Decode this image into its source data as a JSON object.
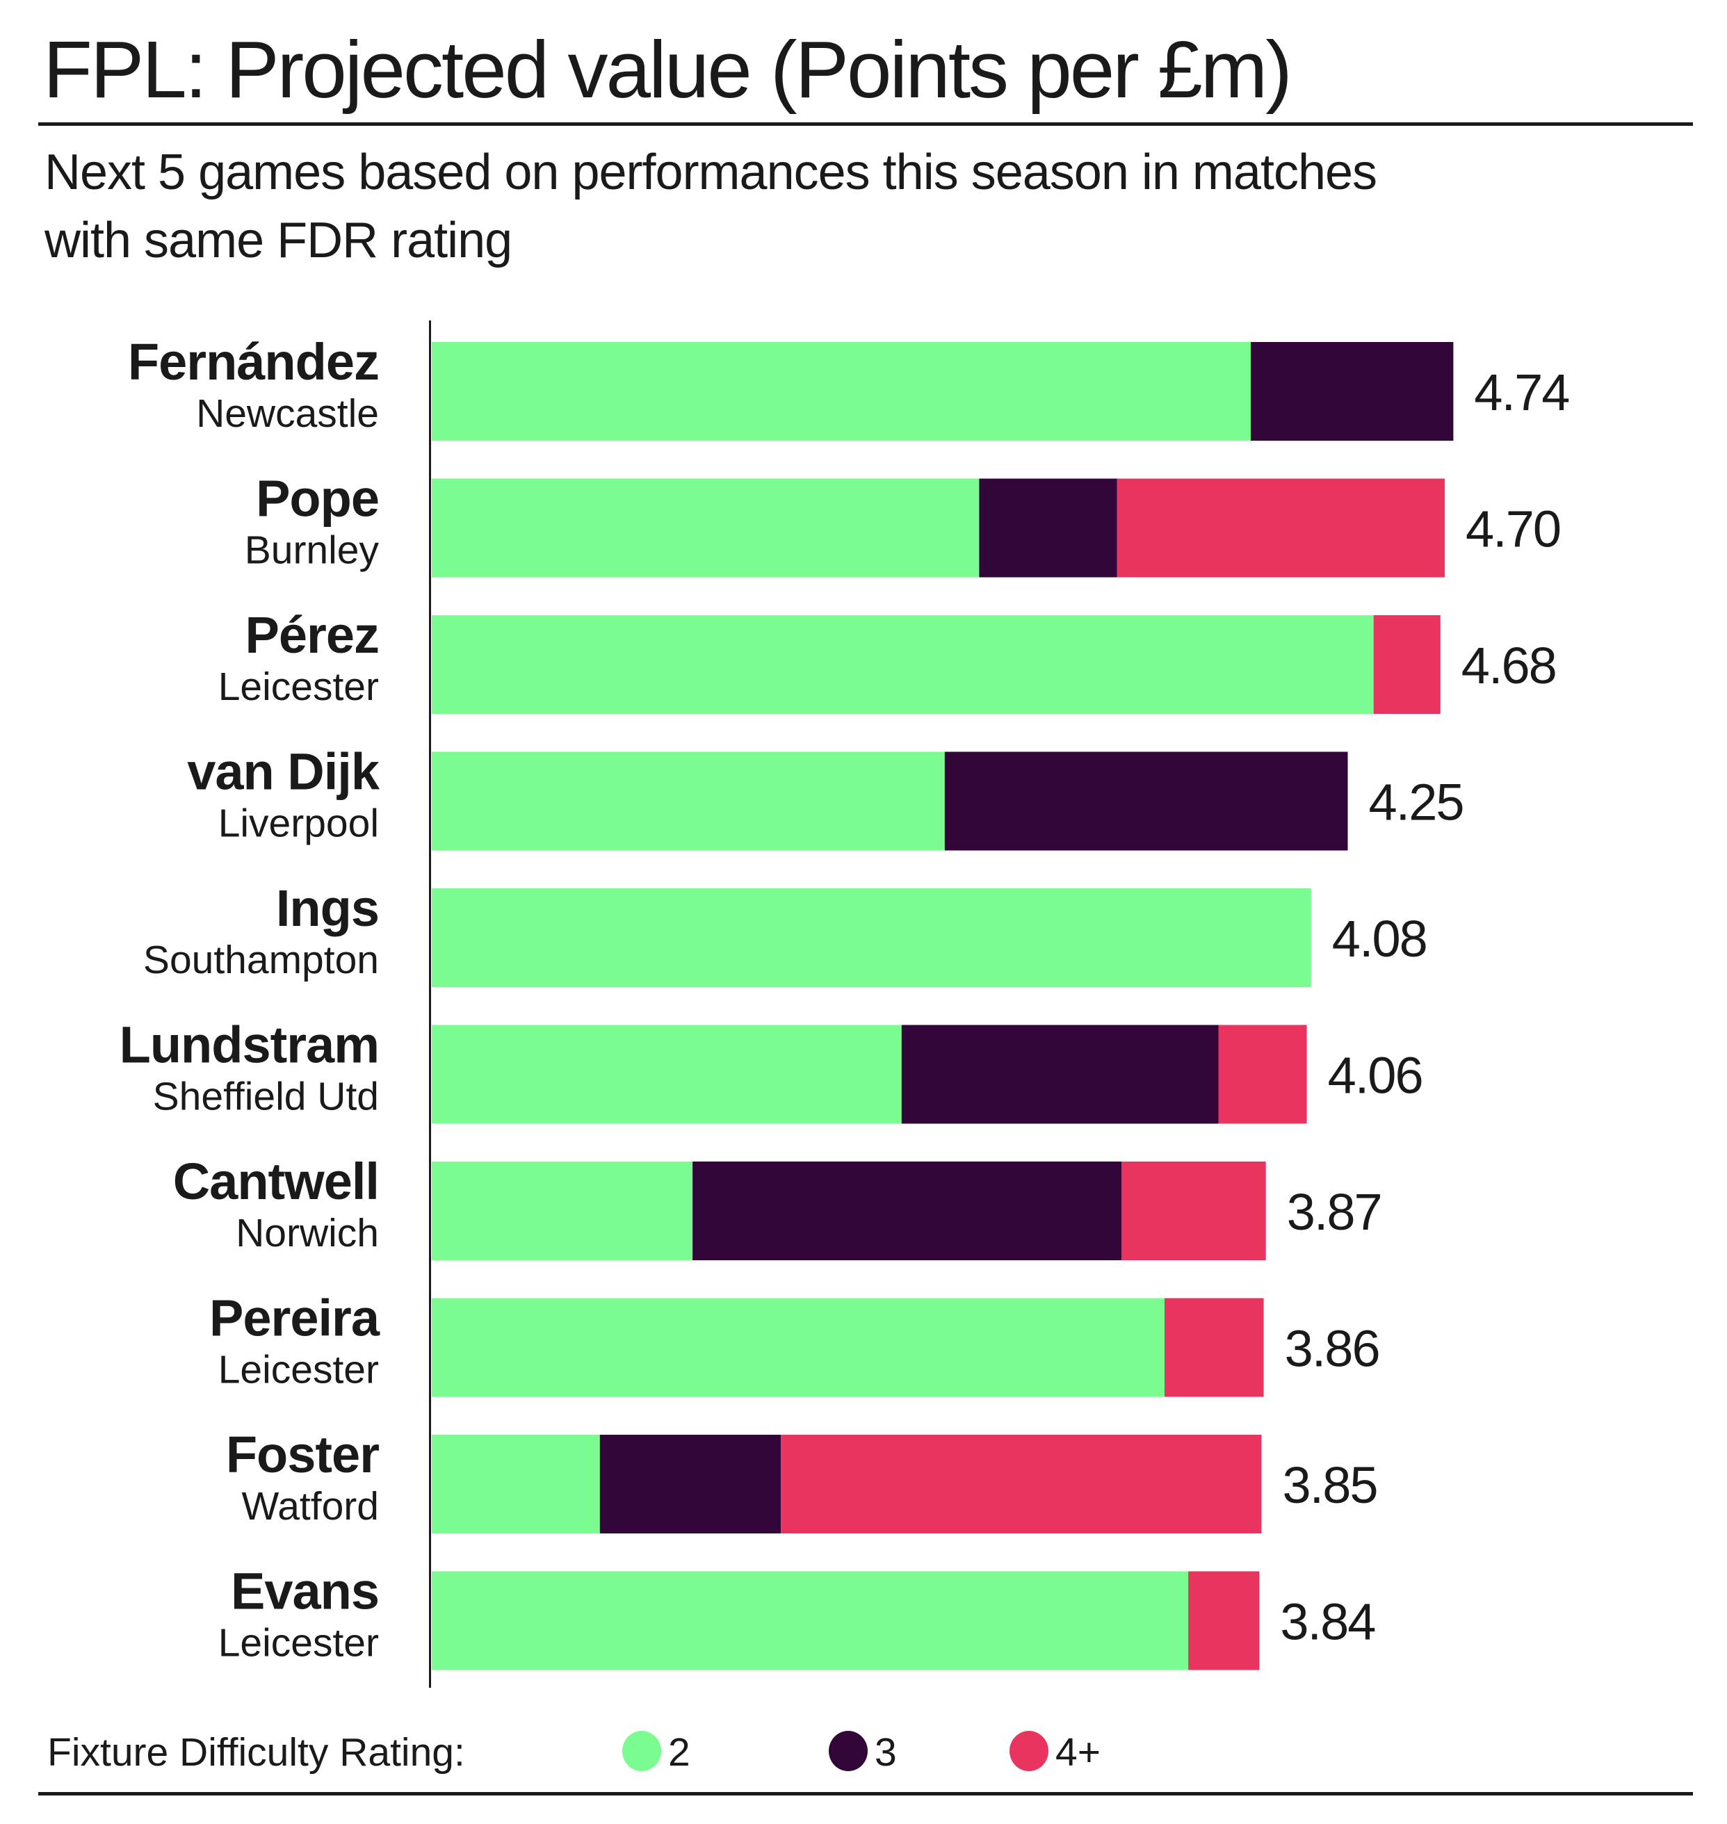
{
  "title": "FPL: Projected value (Points per £m)",
  "subtitle": [
    "Next 5 games based on performances this season in matches",
    "with same FDR rating"
  ],
  "colors": {
    "fdr2": "#7afc91",
    "fdr3": "#320639",
    "fdr4plus": "#e8345e",
    "text": "#1a1a1a"
  },
  "chart_data": {
    "type": "bar",
    "orientation": "horizontal",
    "stacked": true,
    "title": "FPL: Projected value (Points per £m)",
    "categories": [
      {
        "player": "Fernández",
        "team": "Newcastle"
      },
      {
        "player": "Pope",
        "team": "Burnley"
      },
      {
        "player": "Pérez",
        "team": "Leicester"
      },
      {
        "player": "van Dijk",
        "team": "Liverpool"
      },
      {
        "player": "Ings",
        "team": "Southampton"
      },
      {
        "player": "Lundstram",
        "team": "Sheffield Utd"
      },
      {
        "player": "Cantwell",
        "team": "Norwich"
      },
      {
        "player": "Pereira",
        "team": "Leicester"
      },
      {
        "player": "Foster",
        "team": "Watford"
      },
      {
        "player": "Evans",
        "team": "Leicester"
      }
    ],
    "totals": [
      "4.74",
      "4.70",
      "4.68",
      "4.25",
      "4.08",
      "4.06",
      "3.87",
      "3.86",
      "3.85",
      "3.84"
    ],
    "series": [
      {
        "name": "2",
        "color": "#7afc91",
        "values": [
          3.8,
          2.54,
          4.37,
          2.38,
          4.08,
          2.18,
          1.21,
          3.4,
          0.78,
          3.51
        ]
      },
      {
        "name": "3",
        "color": "#320639",
        "values": [
          0.94,
          0.64,
          0,
          1.87,
          0,
          1.47,
          1.99,
          0,
          0.84,
          0
        ]
      },
      {
        "name": "4+",
        "color": "#e8345e",
        "values": [
          0,
          1.52,
          0.31,
          0,
          0,
          0.41,
          0.67,
          0.46,
          2.23,
          0.33
        ]
      }
    ],
    "xlim": [
      0,
      4.74
    ],
    "grid": false,
    "legend": {
      "title": "Fixture Difficulty Rating:",
      "placement": "bottom-left"
    }
  }
}
